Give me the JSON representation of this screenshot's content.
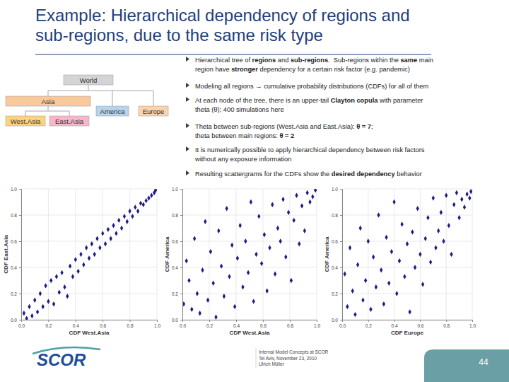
{
  "slide": {
    "title": [
      "Example: Hierarchical dependency of regions and",
      "sub-regions, due to the same risk type"
    ],
    "tree": {
      "nodes": [
        {
          "label": "World",
          "color": "#d4d4d4"
        },
        {
          "label": "Asia",
          "color": "#f9c89b"
        },
        {
          "label": "America",
          "color": "#b8d3ee"
        },
        {
          "label": "Europe",
          "color": "#fbd3ad"
        },
        {
          "label": "West.Asia",
          "color": "#ffd27f"
        },
        {
          "label": "East.Asia",
          "color": "#f7b6c9"
        }
      ]
    },
    "bullets": [
      [
        [
          {
            "text": "Hierarchical tree of ",
            "bold": false
          },
          {
            "text": "regions",
            "bold": true
          },
          {
            "text": " and ",
            "bold": false
          },
          {
            "text": "sub-regions",
            "bold": true
          },
          {
            "text": ".  Sub-regions within the ",
            "bold": false
          },
          {
            "text": "same",
            "bold": true
          },
          {
            "text": " main",
            "bold": false
          }
        ],
        [
          {
            "text": "region have ",
            "bold": false
          },
          {
            "text": "stronger",
            "bold": true
          },
          {
            "text": " dependency for a certain risk factor (e.g. pandemic)",
            "bold": false
          }
        ]
      ],
      [
        [
          {
            "text": "Modeling all regions → cumulative probability distributions (CDFs) for all of them",
            "bold": false
          }
        ]
      ],
      [
        [
          {
            "text": "At each node of the tree, there is an upper-tail ",
            "bold": false
          },
          {
            "text": "Clayton copula",
            "bold": true
          },
          {
            "text": " with parameter",
            "bold": false
          }
        ],
        [
          {
            "text": "theta (θ); 400 simulations here",
            "bold": false
          }
        ]
      ],
      [
        [
          {
            "text": "Theta between sub-regions (West.Asia and East.Asia): ",
            "bold": false
          },
          {
            "text": "θ = 7",
            "bold": true
          },
          {
            "text": ";",
            "bold": false
          }
        ],
        [
          {
            "text": "theta between main regions: ",
            "bold": false
          },
          {
            "text": "θ = 2",
            "bold": true
          }
        ]
      ],
      [
        [
          {
            "text": "It is numerically possible to apply hierarchical dependency between risk factors",
            "bold": false
          }
        ],
        [
          {
            "text": "without any exposure information",
            "bold": false
          }
        ]
      ],
      [
        [
          {
            "text": "Resulting scattergrams for the CDFs show the ",
            "bold": false
          },
          {
            "text": "desired dependency",
            "bold": true
          },
          {
            "text": " behavior",
            "bold": false
          }
        ]
      ]
    ],
    "logo": "SCOR",
    "footer": [
      "Internal Model Concepts at SCOR",
      "Tel Aviv, November 23, 2010",
      "Ulrich Müller"
    ],
    "page": "44"
  },
  "chart_data": [
    {
      "type": "scatter",
      "x_label": "CDF West.Asia",
      "y_label": "CDF East.Asia",
      "xlim": [
        0,
        1
      ],
      "ylim": [
        0,
        1
      ],
      "xticks": [
        {
          "value": 0,
          "label": "0.0"
        },
        0.2,
        0.4,
        0.6,
        0.8,
        {
          "value": 1,
          "label": "1.0"
        }
      ],
      "yticks": [
        {
          "value": 0,
          "label": "0.0"
        },
        0.2,
        0.4,
        0.6,
        0.8,
        {
          "value": 1,
          "label": "1.0"
        }
      ],
      "grid": true,
      "marker": "diamond",
      "color": "#1c1c8a",
      "x": [
        0.02,
        0.04,
        0.06,
        0.08,
        0.1,
        0.12,
        0.14,
        0.16,
        0.18,
        0.2,
        0.22,
        0.24,
        0.26,
        0.28,
        0.3,
        0.32,
        0.34,
        0.36,
        0.38,
        0.4,
        0.42,
        0.44,
        0.46,
        0.48,
        0.5,
        0.52,
        0.54,
        0.56,
        0.58,
        0.6,
        0.62,
        0.64,
        0.66,
        0.68,
        0.7,
        0.72,
        0.74,
        0.76,
        0.78,
        0.8,
        0.82,
        0.84,
        0.86,
        0.88,
        0.9,
        0.92,
        0.94,
        0.96,
        0.98,
        0.99
      ],
      "values": [
        0.05,
        0.01,
        0.1,
        0.03,
        0.15,
        0.06,
        0.2,
        0.1,
        0.26,
        0.14,
        0.3,
        0.12,
        0.33,
        0.21,
        0.36,
        0.25,
        0.18,
        0.41,
        0.33,
        0.46,
        0.37,
        0.5,
        0.42,
        0.55,
        0.47,
        0.58,
        0.5,
        0.62,
        0.55,
        0.66,
        0.58,
        0.69,
        0.62,
        0.72,
        0.66,
        0.76,
        0.7,
        0.79,
        0.75,
        0.83,
        0.79,
        0.86,
        0.83,
        0.89,
        0.88,
        0.91,
        0.93,
        0.95,
        0.97,
        0.99
      ]
    },
    {
      "type": "scatter",
      "x_label": "CDF West.Asia",
      "y_label": "CDF America",
      "xlim": [
        0,
        1
      ],
      "ylim": [
        0,
        1
      ],
      "xticks": [
        {
          "value": 0,
          "label": "0.0"
        },
        0.2,
        0.4,
        0.6,
        0.8,
        {
          "value": 1,
          "label": "1.0"
        }
      ],
      "yticks": [
        {
          "value": 0,
          "label": "0.0"
        },
        0.2,
        0.4,
        0.6,
        0.8,
        {
          "value": 1,
          "label": "1.0"
        }
      ],
      "grid": true,
      "marker": "diamond",
      "color": "#1c1c8a",
      "x": [
        0.01,
        0.03,
        0.05,
        0.07,
        0.09,
        0.11,
        0.13,
        0.15,
        0.17,
        0.19,
        0.21,
        0.23,
        0.25,
        0.27,
        0.29,
        0.31,
        0.33,
        0.35,
        0.37,
        0.39,
        0.41,
        0.43,
        0.45,
        0.47,
        0.49,
        0.51,
        0.53,
        0.55,
        0.57,
        0.59,
        0.61,
        0.63,
        0.65,
        0.67,
        0.69,
        0.71,
        0.73,
        0.75,
        0.77,
        0.79,
        0.81,
        0.83,
        0.85,
        0.87,
        0.89,
        0.91,
        0.93,
        0.95,
        0.97,
        0.99
      ],
      "values": [
        0.12,
        0.45,
        0.3,
        0.08,
        0.62,
        0.2,
        0.05,
        0.38,
        0.75,
        0.15,
        0.52,
        0.28,
        0.02,
        0.68,
        0.41,
        0.18,
        0.85,
        0.33,
        0.57,
        0.1,
        0.47,
        0.72,
        0.25,
        0.6,
        0.36,
        0.9,
        0.14,
        0.5,
        0.79,
        0.43,
        0.65,
        0.22,
        0.55,
        0.88,
        0.35,
        0.7,
        0.6,
        0.92,
        0.48,
        0.82,
        0.3,
        0.76,
        0.95,
        0.58,
        0.87,
        0.68,
        0.97,
        0.9,
        0.94,
        0.99
      ]
    },
    {
      "type": "scatter",
      "x_label": "CDF Europe",
      "y_label": "CDF America",
      "xlim": [
        0,
        1
      ],
      "ylim": [
        0,
        1
      ],
      "xticks": [
        {
          "value": 0,
          "label": "0.0"
        },
        0.2,
        0.4,
        0.6,
        0.8,
        {
          "value": 1,
          "label": "1.0"
        }
      ],
      "yticks": [
        {
          "value": 0,
          "label": "0.0"
        },
        0.2,
        0.4,
        0.6,
        0.8,
        {
          "value": 1,
          "label": "1.0"
        }
      ],
      "grid": true,
      "marker": "diamond",
      "color": "#1c1c8a",
      "x": [
        0.02,
        0.04,
        0.06,
        0.08,
        0.1,
        0.12,
        0.14,
        0.16,
        0.18,
        0.2,
        0.22,
        0.24,
        0.26,
        0.28,
        0.3,
        0.32,
        0.34,
        0.36,
        0.38,
        0.4,
        0.42,
        0.44,
        0.46,
        0.48,
        0.5,
        0.52,
        0.54,
        0.56,
        0.58,
        0.6,
        0.62,
        0.64,
        0.66,
        0.68,
        0.7,
        0.72,
        0.74,
        0.76,
        0.78,
        0.8,
        0.82,
        0.84,
        0.86,
        0.88,
        0.9,
        0.92,
        0.94,
        0.96,
        0.98,
        0.99
      ],
      "values": [
        0.35,
        0.1,
        0.55,
        0.22,
        0.04,
        0.42,
        0.7,
        0.15,
        0.3,
        0.6,
        0.08,
        0.48,
        0.25,
        0.8,
        0.38,
        0.12,
        0.63,
        0.28,
        0.52,
        0.9,
        0.2,
        0.45,
        0.73,
        0.33,
        0.58,
        0.06,
        0.67,
        0.4,
        0.85,
        0.5,
        0.27,
        0.62,
        0.78,
        0.44,
        0.93,
        0.55,
        0.68,
        0.82,
        0.6,
        0.95,
        0.72,
        0.5,
        0.88,
        0.97,
        0.78,
        0.92,
        0.86,
        0.96,
        0.93,
        0.98
      ]
    }
  ]
}
